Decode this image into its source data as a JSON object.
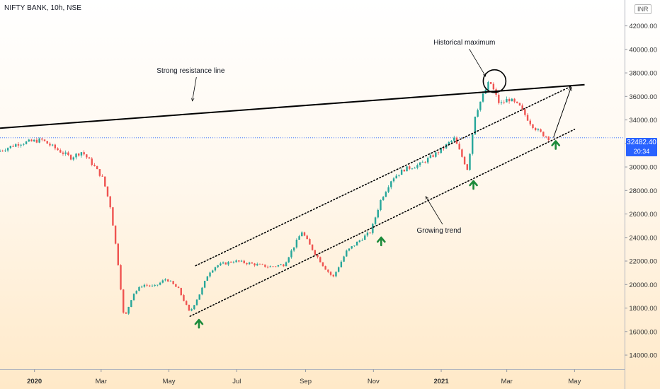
{
  "header": {
    "symbol_title": "NIFTY BANK, 10h, NSE",
    "currency": "INR"
  },
  "price_tag": {
    "price": "32482.40",
    "countdown": "20:34"
  },
  "colors": {
    "up": "#26a69a",
    "down": "#ef5350",
    "arrow": "#1b8a3a",
    "price_line": "#2962ff"
  },
  "chart_data": {
    "type": "candlestick",
    "title": "NIFTY BANK, 10h, NSE",
    "y_ticks": [
      "42000.00",
      "40000.00",
      "38000.00",
      "36000.00",
      "34000.00",
      "32000.00",
      "30000.00",
      "28000.00",
      "26000.00",
      "24000.00",
      "22000.00",
      "20000.00",
      "18000.00",
      "16000.00",
      "14000.00"
    ],
    "x_ticks": [
      {
        "label": "2020",
        "date": "2020-01-01",
        "bold": true
      },
      {
        "label": "Mar",
        "date": "2020-03-01"
      },
      {
        "label": "May",
        "date": "2020-05-01"
      },
      {
        "label": "Jul",
        "date": "2020-07-01"
      },
      {
        "label": "Sep",
        "date": "2020-09-01"
      },
      {
        "label": "Nov",
        "date": "2020-11-01"
      },
      {
        "label": "2021",
        "date": "2021-01-01",
        "bold": true
      },
      {
        "label": "Mar",
        "date": "2021-03-01"
      },
      {
        "label": "May",
        "date": "2021-05-01"
      }
    ],
    "x_range": [
      "2019-12-01",
      "2021-06-15"
    ],
    "y_range": [
      12800,
      44200
    ],
    "last_price": 32482.4,
    "price_path": [
      [
        "2019-12-01",
        31300
      ],
      [
        "2019-12-20",
        32000
      ],
      [
        "2020-01-10",
        32300
      ],
      [
        "2020-01-20",
        31700
      ],
      [
        "2020-02-05",
        30800
      ],
      [
        "2020-02-15",
        31300
      ],
      [
        "2020-02-25",
        30200
      ],
      [
        "2020-03-05",
        29000
      ],
      [
        "2020-03-12",
        26500
      ],
      [
        "2020-03-19",
        21500
      ],
      [
        "2020-03-24",
        17000
      ],
      [
        "2020-04-01",
        19200
      ],
      [
        "2020-04-10",
        20000
      ],
      [
        "2020-04-20",
        19800
      ],
      [
        "2020-05-01",
        20500
      ],
      [
        "2020-05-12",
        19600
      ],
      [
        "2020-05-22",
        17600
      ],
      [
        "2020-06-01",
        19400
      ],
      [
        "2020-06-08",
        21000
      ],
      [
        "2020-06-15",
        21600
      ],
      [
        "2020-07-01",
        22000
      ],
      [
        "2020-07-15",
        21800
      ],
      [
        "2020-08-01",
        21500
      ],
      [
        "2020-08-15",
        21700
      ],
      [
        "2020-08-31",
        24500
      ],
      [
        "2020-09-08",
        23200
      ],
      [
        "2020-09-20",
        21500
      ],
      [
        "2020-09-28",
        20600
      ],
      [
        "2020-10-10",
        22800
      ],
      [
        "2020-10-25",
        24000
      ],
      [
        "2020-11-01",
        24500
      ],
      [
        "2020-11-10",
        27200
      ],
      [
        "2020-11-20",
        29000
      ],
      [
        "2020-12-01",
        29800
      ],
      [
        "2020-12-15",
        30200
      ],
      [
        "2021-01-01",
        31300
      ],
      [
        "2021-01-15",
        32400
      ],
      [
        "2021-01-27",
        29800
      ],
      [
        "2021-02-03",
        34500
      ],
      [
        "2021-02-10",
        36100
      ],
      [
        "2021-02-16",
        37300
      ],
      [
        "2021-02-25",
        35300
      ],
      [
        "2021-03-05",
        35800
      ],
      [
        "2021-03-15",
        35100
      ],
      [
        "2021-03-25",
        33700
      ],
      [
        "2021-04-01",
        33000
      ],
      [
        "2021-04-10",
        32482
      ]
    ],
    "trendlines": [
      {
        "name": "resistance",
        "style": "solid",
        "from": [
          "2019-12-01",
          33300
        ],
        "to": [
          "2021-05-10",
          37000
        ]
      },
      {
        "name": "channel-upper",
        "style": "dotted",
        "from": [
          "2020-05-25",
          21600
        ],
        "to": [
          "2021-05-01",
          37000
        ]
      },
      {
        "name": "channel-lower",
        "style": "dotted",
        "from": [
          "2020-05-20",
          17300
        ],
        "to": [
          "2021-05-01",
          33200
        ]
      }
    ],
    "projection_arrow": {
      "from": [
        "2021-04-12",
        32500
      ],
      "to": [
        "2021-04-28",
        36800
      ]
    },
    "up_arrows": [
      {
        "date": "2020-05-28",
        "price": 16700
      },
      {
        "date": "2020-11-08",
        "price": 23700
      },
      {
        "date": "2021-01-30",
        "price": 28500
      },
      {
        "date": "2021-04-14",
        "price": 31900
      }
    ],
    "circle_highlight": {
      "date": "2021-02-18",
      "price": 37300
    },
    "annotations": [
      {
        "text": "Strong resistance line",
        "date": "2020-04-20",
        "price": 38000,
        "pointer_to": [
          "2020-05-22",
          35600
        ]
      },
      {
        "text": "Historical maximum",
        "date": "2020-12-25",
        "price": 40400,
        "pointer_to": [
          "2021-02-10",
          37700
        ]
      },
      {
        "text": "Growing trend",
        "date": "2020-12-10",
        "price": 24400,
        "pointer_to": [
          "2020-12-18",
          27500
        ]
      }
    ]
  }
}
